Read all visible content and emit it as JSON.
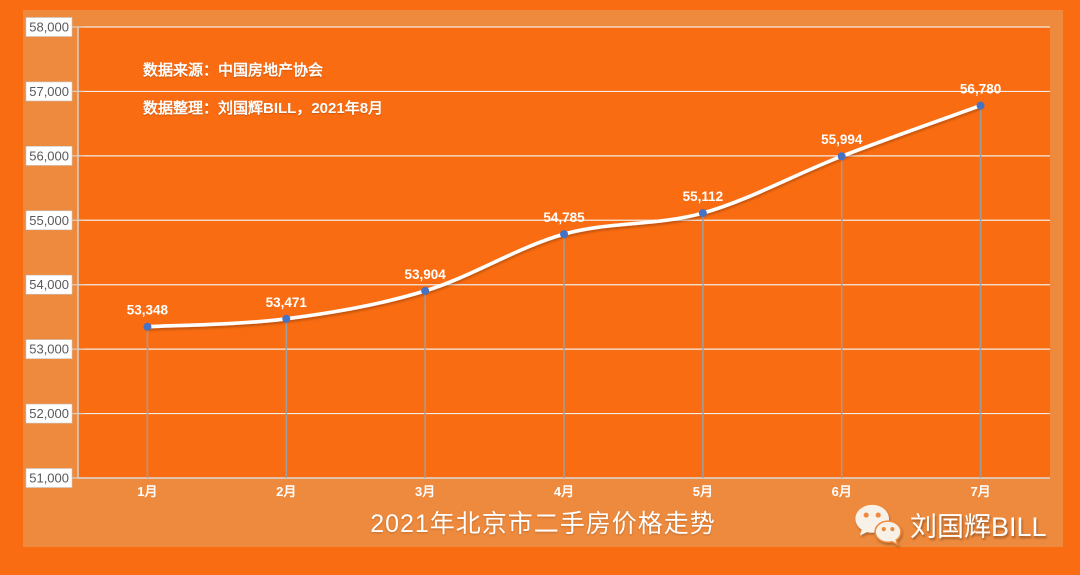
{
  "colors": {
    "page_bg": "#fa6c11",
    "panel_bg": "#ee8a3d",
    "line": "#ffffff",
    "marker": "#4472c4",
    "gridline": "#f2ebe3",
    "dropline": "#9e9e9e",
    "axis": "#d9d2ca",
    "tick_label_text": "#595959",
    "tick_label_bg": "#ffffff",
    "tick_label_border": "#c9c9c9",
    "label_text": "#ffffff",
    "wechat_cream": "#f8f1e7"
  },
  "annotations": {
    "source": "数据来源：中国房地产协会",
    "prepared_by": "数据整理：刘国辉BILL，2021年8月"
  },
  "watermark": {
    "icon": "wechat-icon",
    "label": "刘国辉BILL"
  },
  "chart_data": {
    "type": "line",
    "title": "2021年北京市二手房价格走势",
    "categories": [
      "1月",
      "2月",
      "3月",
      "4月",
      "5月",
      "6月",
      "7月"
    ],
    "series": [
      {
        "values": [
          53348,
          53471,
          53904,
          54785,
          55112,
          55994,
          56780
        ]
      }
    ],
    "data_labels": [
      "53,348",
      "53,471",
      "53,904",
      "54,785",
      "55,112",
      "55,994",
      "56,780"
    ],
    "ylim": [
      51000,
      58000
    ],
    "ytick_step": 1000,
    "ytick_labels": [
      "51,000",
      "52,000",
      "53,000",
      "54,000",
      "55,000",
      "56,000",
      "57,000",
      "58,000"
    ],
    "xlabel": "",
    "ylabel": "",
    "grid": true,
    "legend": "none",
    "marker_style": "circle",
    "line_smooth": true,
    "drop_lines": true
  }
}
